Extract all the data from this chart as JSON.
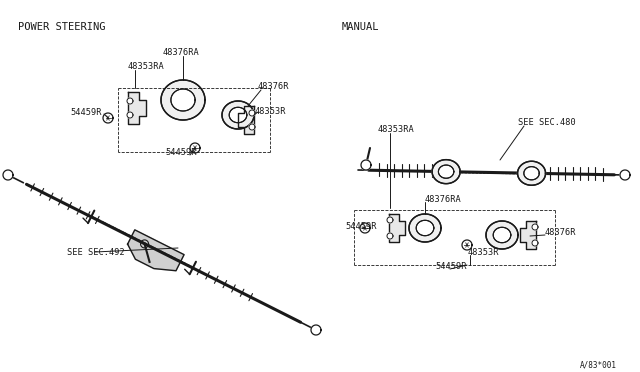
{
  "bg_color": "#ffffff",
  "fig_width": 6.4,
  "fig_height": 3.72,
  "dpi": 100,
  "left_section_label": "POWER STEERING",
  "right_section_label": "MANUAL",
  "watermark": "A/83*001",
  "line_color": "#1a1a1a",
  "text_color": "#1a1a1a",
  "label_fontsize": 6.2,
  "section_fontsize": 7.5,
  "lw_main": 1.8,
  "lw_part": 1.0,
  "lw_thin": 0.7
}
